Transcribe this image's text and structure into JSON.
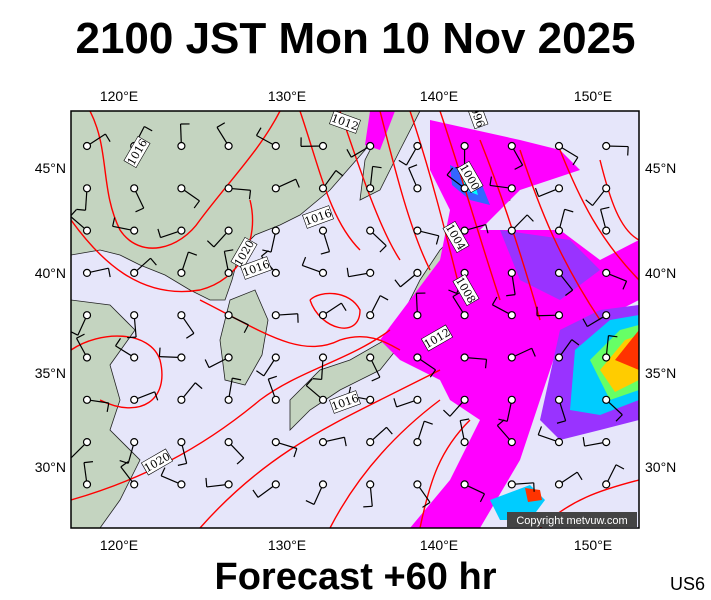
{
  "title": "2100 JST Mon 10 Nov 2025",
  "footer": "Forecast +60 hr",
  "region_code": "US6",
  "copyright": "Copyright metvuw.com",
  "map": {
    "lon_ticks": [
      "120°E",
      "130°E",
      "140°E",
      "150°E"
    ],
    "lat_ticks": [
      "45°N",
      "40°N",
      "35°N",
      "30°N"
    ],
    "isobar_labels": [
      "1012",
      "1016",
      "1016",
      "1020",
      "1016",
      "996",
      "1000",
      "1004",
      "1008",
      "1012",
      "1016",
      "1020"
    ],
    "colors": {
      "ocean": "#e6e6fa",
      "land": "#c4d4c0",
      "isobar": "#ff0000",
      "precip_light": "#ff00ff",
      "precip_mid": "#9933ff",
      "precip_heavy": "#3366ff",
      "precip_extreme": "#ff3300"
    }
  }
}
